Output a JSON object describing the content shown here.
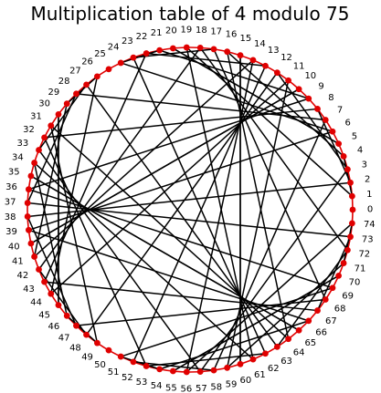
{
  "title": "Multiplication table of 4 modulo 75",
  "diagram": {
    "multiplier": 4,
    "modulus": 75,
    "start_label": "0",
    "direction": "counterclockwise",
    "point_color": "#e00000",
    "line_color": "#000000",
    "circle_color": "#e00000"
  }
}
